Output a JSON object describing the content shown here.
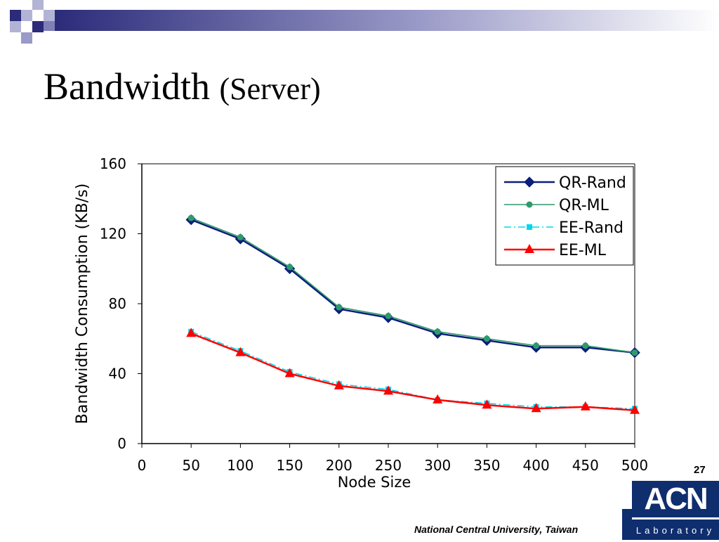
{
  "slide": {
    "title": "Bandwidth",
    "title_sub": "(Server)",
    "page_number": "27",
    "footer": "National Central University, Taiwan",
    "logo_top": "ACN",
    "logo_bottom": "Laboratory"
  },
  "colors": {
    "deco_dark": "#2b2b7a",
    "deco_mid": "#5555a0",
    "deco_light": "#b3b3d6",
    "logo_blue": "#0f2e6e"
  },
  "chart_data": {
    "type": "line",
    "xlabel": "Node Size",
    "ylabel": "Bandwidth Consumption (KB/s)",
    "xlim": [
      0,
      500
    ],
    "ylim": [
      0,
      160
    ],
    "x_ticks": [
      "0",
      "50",
      "100",
      "150",
      "200",
      "250",
      "300",
      "350",
      "400",
      "450",
      "500"
    ],
    "y_ticks": [
      "0",
      "40",
      "80",
      "120",
      "160"
    ],
    "x": [
      50,
      100,
      150,
      200,
      250,
      300,
      350,
      400,
      450,
      500
    ],
    "legend_position": "top-right",
    "grid": false,
    "series": [
      {
        "name": "QR-Rand",
        "color": "#0b1f7a",
        "marker": "diamond",
        "dash": "solid",
        "values": [
          128,
          117,
          100,
          77,
          72,
          63,
          59,
          55,
          55,
          52
        ]
      },
      {
        "name": "QR-ML",
        "color": "#2e9a6c",
        "marker": "circle",
        "dash": "solid",
        "values": [
          129,
          118,
          101,
          78,
          73,
          64,
          60,
          56,
          56,
          52
        ]
      },
      {
        "name": "EE-Rand",
        "color": "#00d8f0",
        "marker": "square",
        "dash": "dashdot",
        "values": [
          64,
          53,
          41,
          34,
          31,
          25,
          23,
          21,
          21,
          20
        ]
      },
      {
        "name": "EE-ML",
        "color": "#ff0000",
        "marker": "triangle",
        "dash": "solid",
        "values": [
          63,
          52,
          40,
          33,
          30,
          25,
          22,
          20,
          21,
          19
        ]
      }
    ]
  }
}
